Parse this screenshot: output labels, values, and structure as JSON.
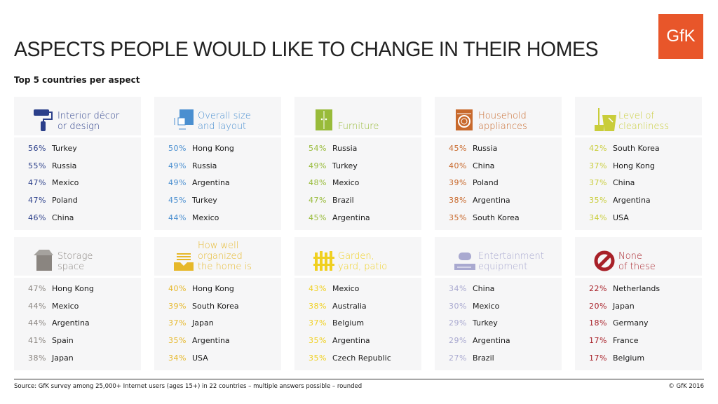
{
  "title": "ASPECTS PEOPLE WOULD LIKE TO CHANGE IN THEIR HOMES",
  "subtitle": "Top 5 countries per aspect",
  "logo": "GfK",
  "source": "Source: GfK survey among 25,000+ Internet users (ages 15+) in 22 countries – multiple answers possible – rounded",
  "copyright": "© GfK 2016",
  "aspects": [
    {
      "label": "Interior décor\nor design",
      "icon": "paint-roller-icon",
      "color": "#2b3f8a",
      "items": [
        [
          "56%",
          "Turkey"
        ],
        [
          "55%",
          "Russia"
        ],
        [
          "47%",
          "Mexico"
        ],
        [
          "47%",
          "Poland"
        ],
        [
          "46%",
          "China"
        ]
      ]
    },
    {
      "label": "Overall size\nand layout",
      "icon": "floor-plan-icon",
      "color": "#4a8fd0",
      "items": [
        [
          "50%",
          "Hong Kong"
        ],
        [
          "49%",
          "Russia"
        ],
        [
          "49%",
          "Argentina"
        ],
        [
          "45%",
          "Turkey"
        ],
        [
          "44%",
          "Mexico"
        ]
      ]
    },
    {
      "label": "Furniture",
      "icon": "cabinet-icon",
      "color": "#98bb3a",
      "items": [
        [
          "54%",
          "Russia"
        ],
        [
          "49%",
          "Turkey"
        ],
        [
          "48%",
          "Mexico"
        ],
        [
          "47%",
          "Brazil"
        ],
        [
          "45%",
          "Argentina"
        ]
      ]
    },
    {
      "label": "Household\nappliances",
      "icon": "washing-machine-icon",
      "color": "#c8692c",
      "items": [
        [
          "45%",
          "Russia"
        ],
        [
          "40%",
          "China"
        ],
        [
          "39%",
          "Poland"
        ],
        [
          "38%",
          "Argentina"
        ],
        [
          "35%",
          "South Korea"
        ]
      ]
    },
    {
      "label": "Level of\ncleanliness",
      "icon": "broom-bucket-icon",
      "color": "#c9cd3a",
      "items": [
        [
          "42%",
          "South Korea"
        ],
        [
          "37%",
          "Hong Kong"
        ],
        [
          "37%",
          "China"
        ],
        [
          "35%",
          "Argentina"
        ],
        [
          "34%",
          "USA"
        ]
      ]
    },
    {
      "label": "Storage\nspace",
      "icon": "box-icon",
      "color": "#8a8580",
      "items": [
        [
          "47%",
          "Hong Kong"
        ],
        [
          "44%",
          "Mexico"
        ],
        [
          "44%",
          "Argentina"
        ],
        [
          "41%",
          "Spain"
        ],
        [
          "38%",
          "Japan"
        ]
      ]
    },
    {
      "label": "How well\norganized\nthe home is",
      "icon": "inbox-tray-icon",
      "color": "#e6b82a",
      "items": [
        [
          "40%",
          "Hong Kong"
        ],
        [
          "39%",
          "South Korea"
        ],
        [
          "37%",
          "Japan"
        ],
        [
          "35%",
          "Argentina"
        ],
        [
          "34%",
          "USA"
        ]
      ]
    },
    {
      "label": "Garden,\nyard, patio",
      "icon": "fence-icon",
      "color": "#f0d020",
      "items": [
        [
          "43%",
          "Mexico"
        ],
        [
          "38%",
          "Australia"
        ],
        [
          "37%",
          "Belgium"
        ],
        [
          "35%",
          "Argentina"
        ],
        [
          "35%",
          "Czech Republic"
        ]
      ]
    },
    {
      "label": "Entertainment\nequipment",
      "icon": "game-console-icon",
      "color": "#a9a9d0",
      "items": [
        [
          "34%",
          "China"
        ],
        [
          "30%",
          "Mexico"
        ],
        [
          "29%",
          "Turkey"
        ],
        [
          "29%",
          "Argentina"
        ],
        [
          "27%",
          "Brazil"
        ]
      ]
    },
    {
      "label": "None\nof these",
      "icon": "prohibited-icon",
      "color": "#a82028",
      "items": [
        [
          "22%",
          "Netherlands"
        ],
        [
          "20%",
          "Japan"
        ],
        [
          "18%",
          "Germany"
        ],
        [
          "17%",
          "France"
        ],
        [
          "17%",
          "Belgium"
        ]
      ]
    }
  ]
}
